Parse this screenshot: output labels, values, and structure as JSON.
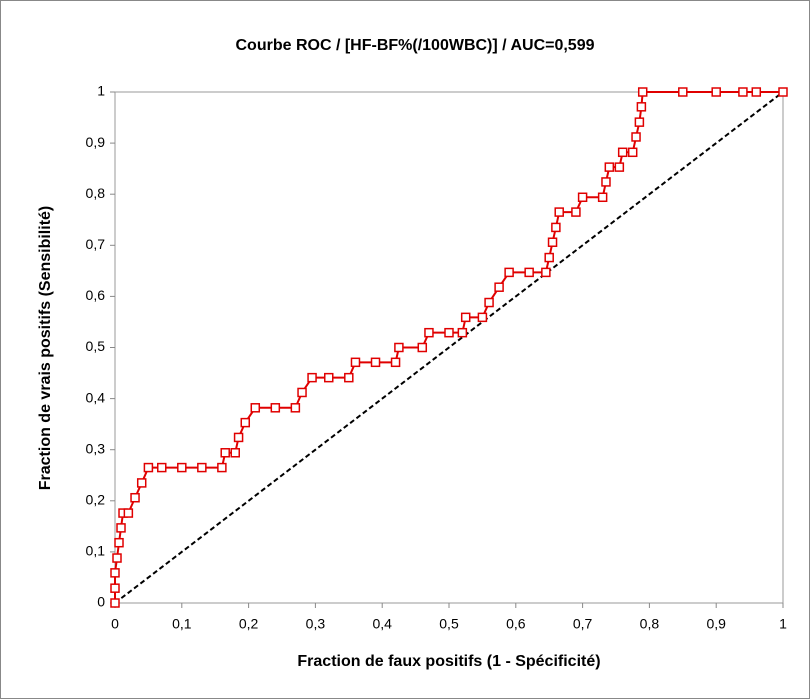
{
  "chart_data": {
    "type": "line",
    "title": "Courbe ROC / [HF-BF%(/100WBC)] / AUC=0,599",
    "x_label": "Fraction de faux positifs (1 - Spécificité)",
    "y_label": "Fraction de vrais positifs (Sensibilité)",
    "x": [
      0,
      0,
      0,
      0.003,
      0.006,
      0.009,
      0.012,
      0.02,
      0.03,
      0.04,
      0.05,
      0.07,
      0.1,
      0.13,
      0.16,
      0.165,
      0.18,
      0.185,
      0.195,
      0.21,
      0.24,
      0.27,
      0.28,
      0.295,
      0.32,
      0.35,
      0.36,
      0.39,
      0.42,
      0.425,
      0.46,
      0.47,
      0.5,
      0.52,
      0.525,
      0.55,
      0.56,
      0.575,
      0.59,
      0.62,
      0.645,
      0.65,
      0.655,
      0.66,
      0.665,
      0.69,
      0.7,
      0.73,
      0.735,
      0.74,
      0.755,
      0.76,
      0.775,
      0.78,
      0.785,
      0.788,
      0.79,
      0.85,
      0.9,
      0.94,
      0.96,
      1
    ],
    "series": [
      {
        "color": "#e00000",
        "values": [
          0,
          0.029,
          0.059,
          0.088,
          0.118,
          0.147,
          0.176,
          0.176,
          0.206,
          0.235,
          0.265,
          0.265,
          0.265,
          0.265,
          0.265,
          0.294,
          0.294,
          0.324,
          0.353,
          0.382,
          0.382,
          0.382,
          0.412,
          0.441,
          0.441,
          0.441,
          0.471,
          0.471,
          0.471,
          0.5,
          0.5,
          0.529,
          0.529,
          0.529,
          0.559,
          0.559,
          0.588,
          0.618,
          0.647,
          0.647,
          0.647,
          0.676,
          0.706,
          0.735,
          0.765,
          0.765,
          0.794,
          0.794,
          0.824,
          0.853,
          0.853,
          0.882,
          0.882,
          0.912,
          0.941,
          0.971,
          1,
          1,
          1,
          1,
          1,
          1
        ]
      }
    ],
    "xlim": [
      0,
      1
    ],
    "ylim": [
      0,
      1
    ],
    "xticks": [
      0,
      {
        "value": 0.1,
        "label": "0,1"
      },
      {
        "value": 0.2,
        "label": "0,2"
      },
      {
        "value": 0.3,
        "label": "0,3"
      },
      {
        "value": 0.4,
        "label": "0,4"
      },
      {
        "value": 0.5,
        "label": "0,5"
      },
      {
        "value": 0.6,
        "label": "0,6"
      },
      {
        "value": 0.7,
        "label": "0,7"
      },
      {
        "value": 0.8,
        "label": "0,8"
      },
      {
        "value": 0.9,
        "label": "0,9"
      },
      1
    ],
    "yticks": [
      0,
      {
        "value": 0.1,
        "label": "0,1"
      },
      {
        "value": 0.2,
        "label": "0,2"
      },
      {
        "value": 0.3,
        "label": "0,3"
      },
      {
        "value": 0.4,
        "label": "0,4"
      },
      {
        "value": 0.5,
        "label": "0,5"
      },
      {
        "value": 0.6,
        "label": "0,6"
      },
      {
        "value": 0.7,
        "label": "0,7"
      },
      {
        "value": 0.8,
        "label": "0,8"
      },
      {
        "value": 0.9,
        "label": "0,9"
      },
      1
    ]
  }
}
